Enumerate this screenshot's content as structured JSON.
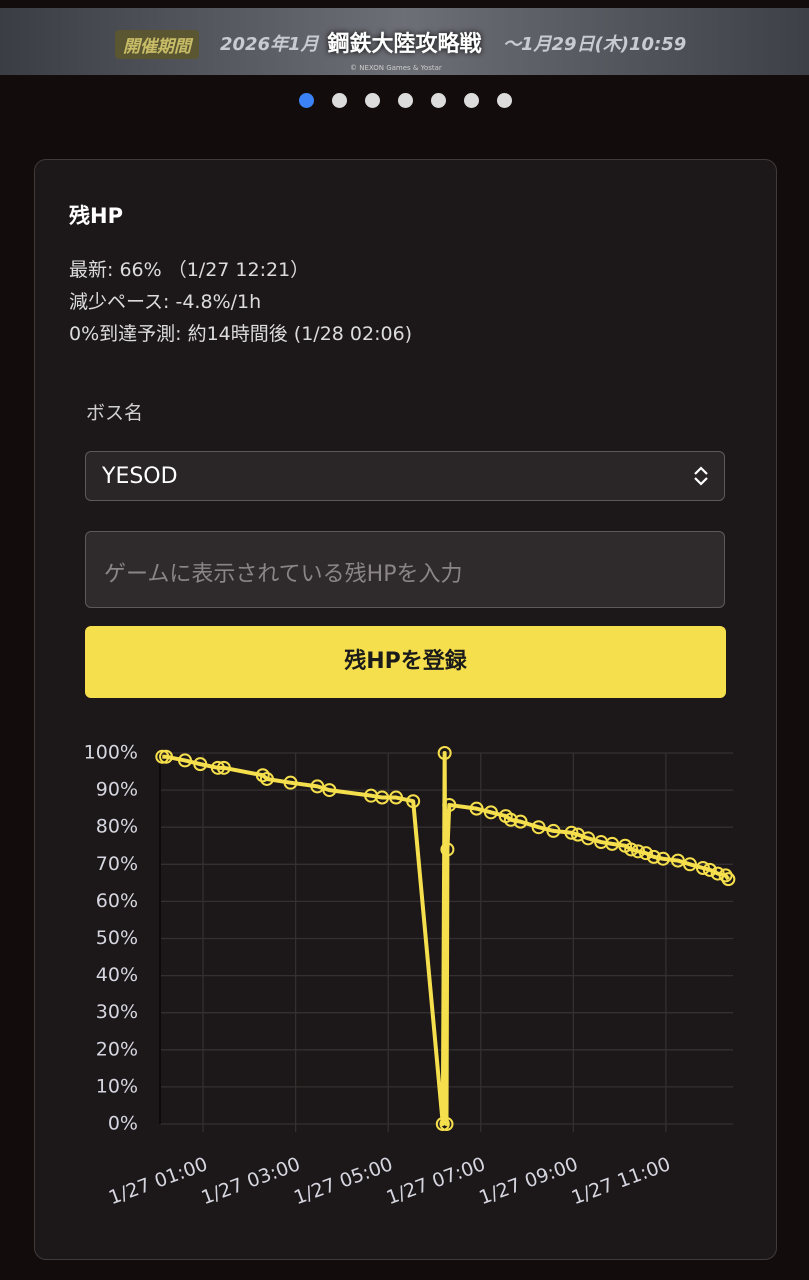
{
  "banner": {
    "title": "鋼鉄大陸攻略戦",
    "period_label": "開催期間",
    "period_start": "2026年1月",
    "period_end": "〜1月29日(木)10:59",
    "copyright": "© NEXON Games & Yostar"
  },
  "card": {
    "title": "残HP",
    "latest": "最新: 66% （1/27 12:21）",
    "pace": "減少ペース: -4.8%/1h",
    "forecast": "0%到達予測: 約14時間後 (1/28 02:06)",
    "boss_label": "ボス名",
    "boss_value": "YESOD",
    "input_placeholder": "ゲームに表示されている残HPを入力",
    "submit_button": "残HPを登録"
  },
  "chart_data": {
    "type": "line",
    "grid": true,
    "x": [
      0.12,
      0.2,
      0.61,
      0.94,
      1.32,
      1.45,
      2.29,
      2.38,
      2.89,
      3.47,
      3.73,
      4.63,
      4.87,
      5.17,
      5.54,
      6.18,
      6.22,
      6.26,
      6.28,
      6.32,
      6.91,
      7.22,
      7.54,
      7.65,
      7.86,
      8.25,
      8.57,
      8.96,
      9.1,
      9.32,
      9.6,
      9.84,
      10.12,
      10.25,
      10.4,
      10.57,
      10.74,
      10.94,
      11.26,
      11.52,
      11.8,
      11.95,
      12.12,
      12.29,
      12.35
    ],
    "series": [
      {
        "color": "#f5df4d",
        "values": [
          99,
          99,
          98,
          97,
          96,
          96,
          94,
          93,
          92,
          91,
          90,
          88.5,
          88,
          88,
          87,
          0,
          100,
          0,
          74,
          86,
          85,
          84,
          83,
          82,
          81.5,
          80,
          79,
          78.5,
          78,
          77,
          76,
          75.5,
          75,
          74,
          73.5,
          73,
          72,
          71.5,
          71,
          70,
          69,
          68.5,
          67.5,
          67,
          66
        ]
      }
    ],
    "xlim": [
      0.07,
      12.45
    ],
    "xticks": [
      {
        "value": 1,
        "label": "1/27 01:00"
      },
      {
        "value": 3,
        "label": "1/27 03:00"
      },
      {
        "value": 5,
        "label": "1/27 05:00"
      },
      {
        "value": 7,
        "label": "1/27 07:00"
      },
      {
        "value": 9,
        "label": "1/27 09:00"
      },
      {
        "value": 11,
        "label": "1/27 11:00"
      }
    ],
    "ylim": [
      0,
      100
    ],
    "yticks": [
      {
        "value": 0,
        "label": "0%"
      },
      {
        "value": 10,
        "label": "10%"
      },
      {
        "value": 20,
        "label": "20%"
      },
      {
        "value": 30,
        "label": "30%"
      },
      {
        "value": 40,
        "label": "40%"
      },
      {
        "value": 50,
        "label": "50%"
      },
      {
        "value": 60,
        "label": "60%"
      },
      {
        "value": 70,
        "label": "70%"
      },
      {
        "value": 80,
        "label": "80%"
      },
      {
        "value": 90,
        "label": "90%"
      },
      {
        "value": 100,
        "label": "100%"
      }
    ]
  }
}
